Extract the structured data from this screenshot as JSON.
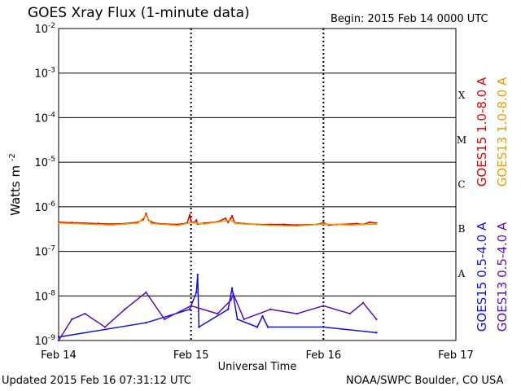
{
  "title": "GOES Xray Flux (1-minute data)",
  "begin_label": "Begin:  2015 Feb 14 0000 UTC",
  "footer_updated": "Updated 2015 Feb 16 07:31:12 UTC",
  "footer_credit": "NOAA/SWPC Boulder, CO USA",
  "colors": {
    "goes15_long": "#e00000",
    "goes13_long": "#e8a000",
    "goes15_short": "#1010e0",
    "goes13_short": "#5a10b0"
  },
  "chart_data": {
    "type": "line",
    "ylabel": "Watts m",
    "ylabel_sup": "-2",
    "xlabel": "Universal Time",
    "y_scale": "log",
    "ylim": [
      1e-09,
      0.01
    ],
    "y_tick_labels": [
      {
        "base": "10",
        "exp": "-2",
        "value": 0.01
      },
      {
        "base": "10",
        "exp": "-3",
        "value": 0.001
      },
      {
        "base": "10",
        "exp": "-4",
        "value": 0.0001
      },
      {
        "base": "10",
        "exp": "-5",
        "value": 1e-05
      },
      {
        "base": "10",
        "exp": "-6",
        "value": 1e-06
      },
      {
        "base": "10",
        "exp": "-7",
        "value": 1e-07
      },
      {
        "base": "10",
        "exp": "-8",
        "value": 1e-08
      },
      {
        "base": "10",
        "exp": "-9",
        "value": 1e-09
      }
    ],
    "x_range_days": [
      0,
      3
    ],
    "x_tick_labels": [
      "Feb 14",
      "Feb 15",
      "Feb 16",
      "Feb 17"
    ],
    "flare_classes": [
      {
        "label": "X",
        "lower": 0.0001
      },
      {
        "label": "M",
        "lower": 1e-05
      },
      {
        "label": "C",
        "lower": 1e-06
      },
      {
        "label": "B",
        "lower": 1e-07
      },
      {
        "label": "A",
        "lower": 1e-08
      }
    ],
    "grid": true,
    "legend_placement": "right",
    "series": [
      {
        "name": "GOES15 1.0-8.0 A",
        "color_key": "goes15_long",
        "points": [
          [
            0.0,
            4.5e-07
          ],
          [
            0.1,
            4.4e-07
          ],
          [
            0.2,
            4.3e-07
          ],
          [
            0.3,
            4.2e-07
          ],
          [
            0.4,
            4.1e-07
          ],
          [
            0.5,
            4.2e-07
          ],
          [
            0.6,
            4.5e-07
          ],
          [
            0.64,
            5.2e-07
          ],
          [
            0.66,
            7e-07
          ],
          [
            0.68,
            5e-07
          ],
          [
            0.72,
            4.3e-07
          ],
          [
            0.8,
            4.1e-07
          ],
          [
            0.9,
            4e-07
          ],
          [
            0.97,
            4.3e-07
          ],
          [
            0.99,
            6.5e-07
          ],
          [
            1.0,
            4.6e-07
          ],
          [
            1.02,
            4.4e-07
          ],
          [
            1.04,
            5e-07
          ],
          [
            1.05,
            4.1e-07
          ],
          [
            1.1,
            4.3e-07
          ],
          [
            1.2,
            4.6e-07
          ],
          [
            1.26,
            5.5e-07
          ],
          [
            1.28,
            4.5e-07
          ],
          [
            1.3,
            5.5e-07
          ],
          [
            1.31,
            6.2e-07
          ],
          [
            1.33,
            4.4e-07
          ],
          [
            1.4,
            4.2e-07
          ],
          [
            1.5,
            4e-07
          ],
          [
            1.6,
            4e-07
          ],
          [
            1.7,
            4e-07
          ],
          [
            1.8,
            3.9e-07
          ],
          [
            1.95,
            4e-07
          ],
          [
            2.0,
            4.4e-07
          ],
          [
            2.04,
            3.9e-07
          ],
          [
            2.1,
            4e-07
          ],
          [
            2.2,
            4.1e-07
          ],
          [
            2.25,
            4.2e-07
          ],
          [
            2.3,
            4e-07
          ],
          [
            2.35,
            4.5e-07
          ],
          [
            2.4,
            4.3e-07
          ]
        ]
      },
      {
        "name": "GOES13 1.0-8.0 A",
        "color_key": "goes13_long",
        "points": [
          [
            0.0,
            4.3e-07
          ],
          [
            0.2,
            4.1e-07
          ],
          [
            0.4,
            3.9e-07
          ],
          [
            0.6,
            4.3e-07
          ],
          [
            0.66,
            6.4e-07
          ],
          [
            0.7,
            4.2e-07
          ],
          [
            0.9,
            3.8e-07
          ],
          [
            1.0,
            4.4e-07
          ],
          [
            1.1,
            4.1e-07
          ],
          [
            1.3,
            5e-07
          ],
          [
            1.34,
            4.2e-07
          ],
          [
            1.6,
            3.8e-07
          ],
          [
            1.8,
            3.7e-07
          ],
          [
            2.0,
            4.1e-07
          ],
          [
            2.2,
            3.9e-07
          ],
          [
            2.4,
            4.1e-07
          ]
        ]
      },
      {
        "name": "GOES15 0.5-4.0 A",
        "color_key": "goes15_short",
        "points": [
          [
            0.0,
            1.2e-09
          ],
          [
            0.66,
            2.5e-09
          ],
          [
            0.99,
            5e-09
          ],
          [
            1.04,
            1.2e-08
          ],
          [
            1.05,
            3e-08
          ],
          [
            1.06,
            2e-09
          ],
          [
            1.28,
            5e-09
          ],
          [
            1.31,
            1.5e-08
          ],
          [
            1.35,
            3e-09
          ],
          [
            1.5,
            2e-09
          ],
          [
            1.54,
            3.5e-09
          ],
          [
            1.58,
            2e-09
          ],
          [
            2.0,
            2e-09
          ],
          [
            2.4,
            1.5e-09
          ]
        ]
      },
      {
        "name": "GOES13 0.5-4.0 A",
        "color_key": "goes13_short",
        "points": [
          [
            0.0,
            1e-09
          ],
          [
            0.1,
            3e-09
          ],
          [
            0.2,
            4e-09
          ],
          [
            0.35,
            2e-09
          ],
          [
            0.5,
            5e-09
          ],
          [
            0.66,
            1.2e-08
          ],
          [
            0.8,
            3e-09
          ],
          [
            1.0,
            6e-09
          ],
          [
            1.2,
            4e-09
          ],
          [
            1.3,
            8e-09
          ],
          [
            1.32,
            1.1e-08
          ],
          [
            1.4,
            3e-09
          ],
          [
            1.6,
            5e-09
          ],
          [
            1.8,
            4e-09
          ],
          [
            2.0,
            6e-09
          ],
          [
            2.2,
            4e-09
          ],
          [
            2.3,
            7e-09
          ],
          [
            2.4,
            3e-09
          ]
        ]
      }
    ]
  }
}
